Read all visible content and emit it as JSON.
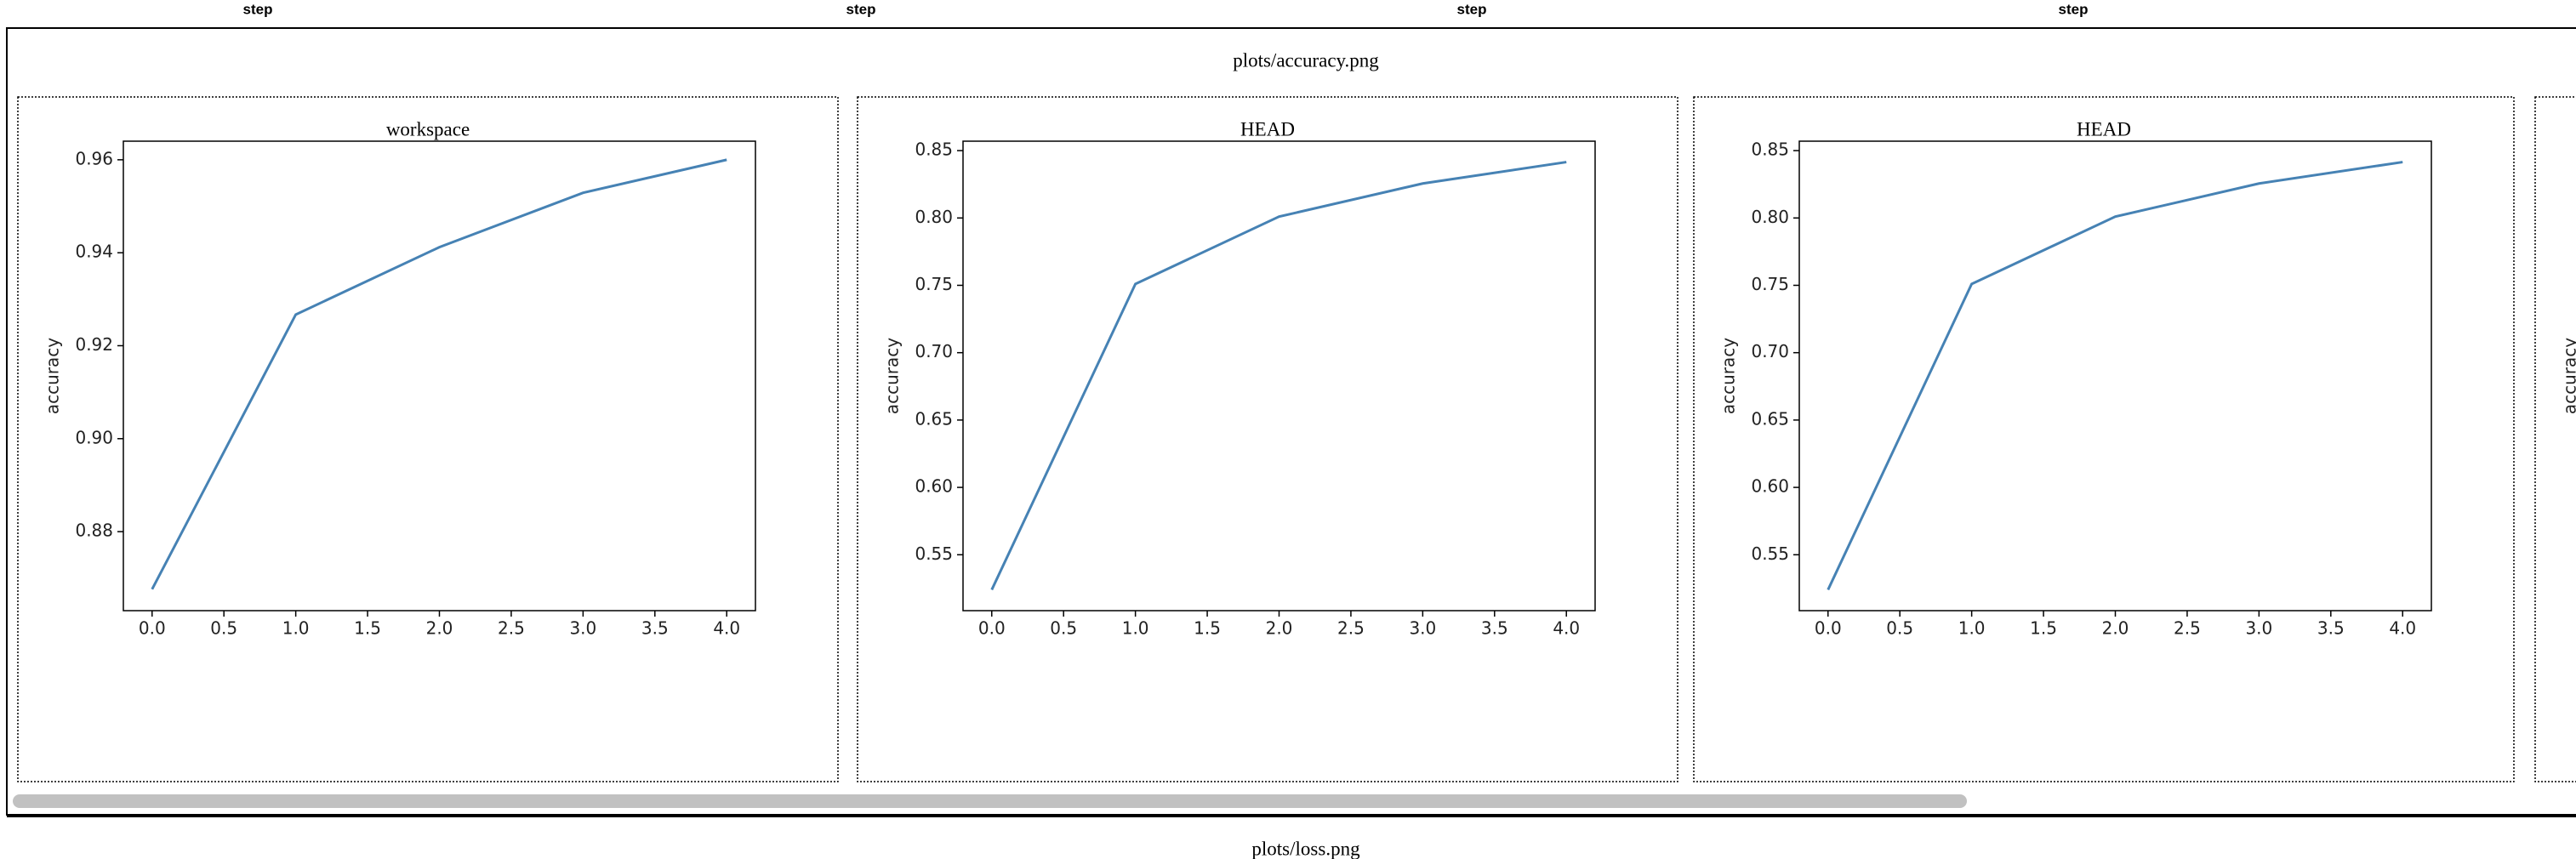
{
  "header": [
    "step",
    "step",
    "step",
    "step"
  ],
  "sections": [
    {
      "title": "plots/accuracy.png",
      "panels": [
        {
          "title": "workspace",
          "chart": {
            "type": "line",
            "ylabel": "accuracy",
            "color": "#4682b4",
            "x": [
              0,
              1,
              2,
              3,
              4
            ],
            "values": [
              0.8676,
              0.9267,
              0.9412,
              0.9529,
              0.96
            ],
            "xlim": [
              -0.2,
              4.2
            ],
            "ylim": [
              0.863,
              0.964
            ],
            "xticks": [
              {
                "value": 0,
                "label": "0.0"
              },
              0.5,
              {
                "value": 1,
                "label": "1.0"
              },
              1.5,
              {
                "value": 2,
                "label": "2.0"
              },
              2.5,
              {
                "value": 3,
                "label": "3.0"
              },
              3.5,
              {
                "value": 4,
                "label": "4.0"
              }
            ],
            "yticks": [
              0.88,
              {
                "value": 0.9,
                "label": "0.90"
              },
              0.92,
              0.94,
              0.96
            ]
          }
        },
        {
          "title": "HEAD",
          "chart": {
            "type": "line",
            "ylabel": "accuracy",
            "color": "#4682b4",
            "x": [
              0,
              1,
              2,
              3,
              4
            ],
            "values": [
              0.524,
              0.751,
              0.801,
              0.8256,
              0.8415
            ],
            "xlim": [
              -0.2,
              4.2
            ],
            "ylim": [
              0.5085,
              0.857
            ],
            "xticks": [
              {
                "value": 0,
                "label": "0.0"
              },
              0.5,
              {
                "value": 1,
                "label": "1.0"
              },
              1.5,
              {
                "value": 2,
                "label": "2.0"
              },
              2.5,
              {
                "value": 3,
                "label": "3.0"
              },
              3.5,
              {
                "value": 4,
                "label": "4.0"
              }
            ],
            "yticks": [
              0.55,
              {
                "value": 0.6,
                "label": "0.60"
              },
              0.65,
              {
                "value": 0.7,
                "label": "0.70"
              },
              0.75,
              {
                "value": 0.8,
                "label": "0.80"
              },
              0.85
            ]
          }
        },
        {
          "title": "HEAD",
          "chart": {
            "type": "line",
            "ylabel": "accuracy",
            "color": "#4682b4",
            "x": [
              0,
              1,
              2,
              3,
              4
            ],
            "values": [
              0.524,
              0.751,
              0.801,
              0.8256,
              0.8415
            ],
            "xlim": [
              -0.2,
              4.2
            ],
            "ylim": [
              0.5085,
              0.857
            ],
            "xticks": [
              {
                "value": 0,
                "label": "0.0"
              },
              0.5,
              {
                "value": 1,
                "label": "1.0"
              },
              1.5,
              {
                "value": 2,
                "label": "2.0"
              },
              2.5,
              {
                "value": 3,
                "label": "3.0"
              },
              3.5,
              {
                "value": 4,
                "label": "4.0"
              }
            ],
            "yticks": [
              0.55,
              {
                "value": 0.6,
                "label": "0.60"
              },
              0.65,
              {
                "value": 0.7,
                "label": "0.70"
              },
              0.75,
              {
                "value": 0.8,
                "label": "0.80"
              },
              0.85
            ]
          }
        },
        {
          "chart": {
            "ylabel": "accuracy"
          }
        }
      ]
    },
    {
      "title": "plots/loss.png"
    }
  ]
}
